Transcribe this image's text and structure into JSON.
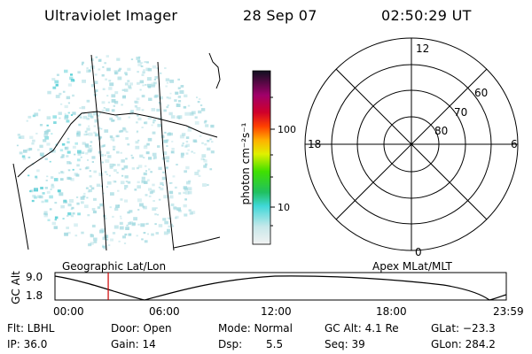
{
  "header": {
    "instrument": "Ultraviolet Imager",
    "date": "28 Sep 07",
    "time": "02:50:29 UT"
  },
  "colorbar": {
    "unit_label": "photon cm⁻²s⁻¹",
    "tick_high": "100",
    "tick_low": "10"
  },
  "polar_plot": {
    "mlt_top": "12",
    "mlt_left": "18",
    "mlt_right": "6",
    "mlt_bottom": "0",
    "lat_60": "60",
    "lat_70": "70",
    "lat_80": "80"
  },
  "timeline": {
    "left_title": "Geographic Lat/Lon",
    "right_title": "Apex MLat/MLT",
    "y_label": "GC Alt",
    "y_max": "9.0",
    "y_min": "1.8",
    "x_ticks": [
      "00:00",
      "06:00",
      "12:00",
      "18:00",
      "23:59"
    ],
    "current_time_fraction": 0.118
  },
  "info": {
    "filter": "Flt: LBHL",
    "ip": "IP: 36.0",
    "door": "Door: Open",
    "gain": "Gain: 14",
    "mode": "Mode: Normal",
    "dsp_label": "Dsp:",
    "dsp_value": "5.5",
    "gc_alt": "GC Alt: 4.1 Re",
    "seq": "Seq: 39",
    "glat": "GLat: −23.3",
    "glon": "GLon: 284.2"
  },
  "colors": {
    "speckle": "#9fd8df",
    "speckle_dark": "#40c8d0",
    "marker": "#cc0000"
  }
}
